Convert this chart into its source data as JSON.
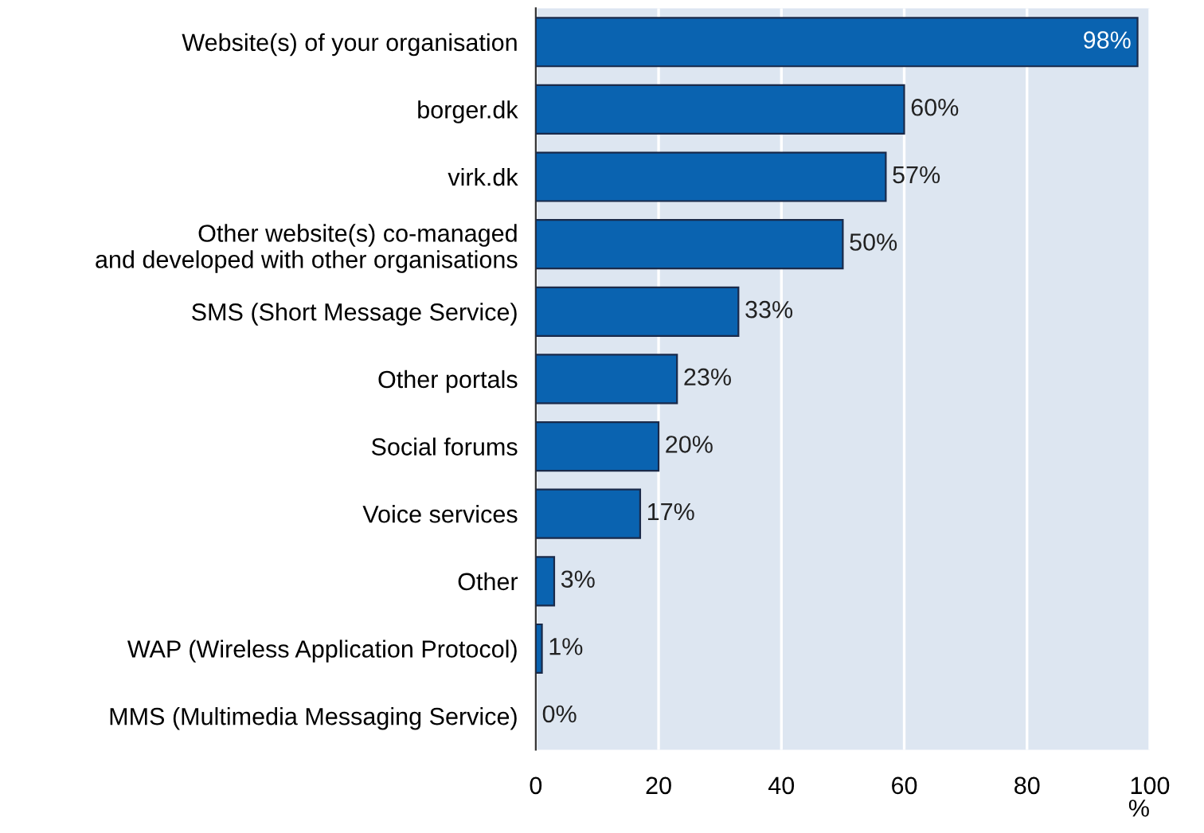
{
  "chart_data": {
    "type": "bar",
    "orientation": "horizontal",
    "categories": [
      "Website(s) of your organisation",
      "borger.dk",
      "virk.dk",
      "Other website(s) co-managed\nand developed with other organisations",
      "SMS (Short Message Service)",
      "Other portals",
      "Social forums",
      "Voice services",
      "Other",
      "WAP (Wireless Application Protocol)",
      "MMS (Multimedia Messaging Service)"
    ],
    "values": [
      98,
      60,
      57,
      50,
      33,
      23,
      20,
      17,
      3,
      1,
      0
    ],
    "value_labels": [
      "98%",
      "60%",
      "57%",
      "50%",
      "33%",
      "23%",
      "20%",
      "17%",
      "3%",
      "1%",
      "0%"
    ],
    "color": "#0a63b0",
    "xlim": [
      0,
      100
    ],
    "xticks": [
      0,
      20,
      40,
      60,
      80,
      100
    ],
    "xlabel": "%",
    "grid": "x"
  }
}
